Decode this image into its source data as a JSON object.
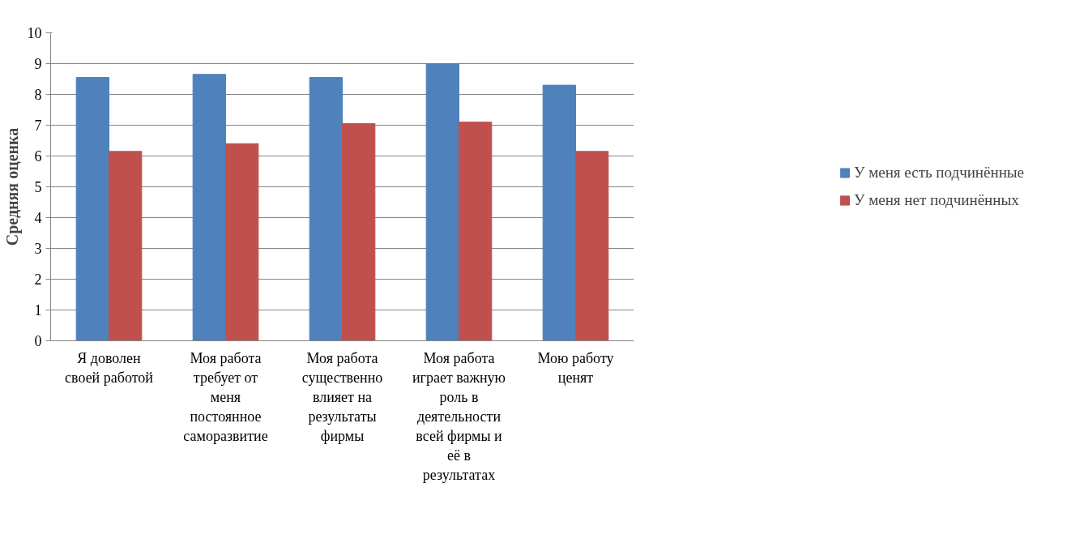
{
  "chart_data": {
    "type": "bar",
    "ylabel": "Средняя оценка",
    "categories": [
      "Я доволен своей работой",
      "Моя работа требует от меня постоянное саморазвитие",
      "Моя работа существенно влияет на результаты фирмы",
      "Моя работа играет важную роль в деятельности всей фирмы и её в результатах",
      "Мою работу ценят"
    ],
    "series": [
      {
        "name": "У меня есть подчинённые",
        "color": "#4f81bd",
        "values": [
          8.55,
          8.65,
          8.55,
          9.0,
          8.3
        ]
      },
      {
        "name": "У меня нет подчинённых",
        "color": "#c0504d",
        "values": [
          6.15,
          6.4,
          7.05,
          7.1,
          6.15
        ]
      }
    ],
    "ylim": [
      0,
      10
    ],
    "yticks": [
      0,
      1,
      2,
      3,
      4,
      5,
      6,
      7,
      8,
      9,
      10
    ],
    "grid": "y",
    "legend": "right"
  }
}
